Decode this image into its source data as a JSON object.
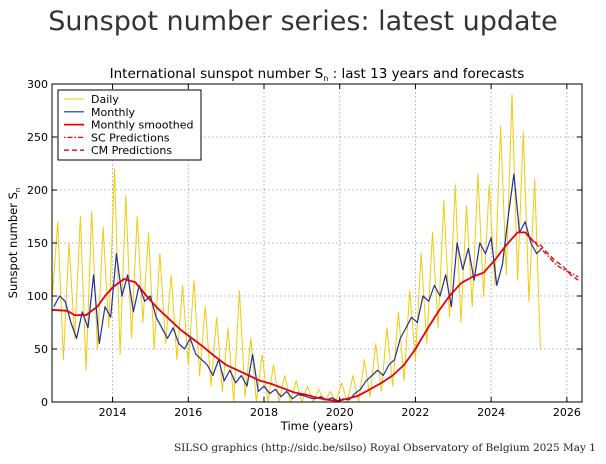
{
  "page": {
    "title": "Sunspot number series: latest update",
    "footer": "SILSO graphics (http://sidc.be/silso)  Royal Observatory of Belgium  2025 May 1"
  },
  "chart_data": {
    "type": "line",
    "title_text": "International sunspot number S",
    "title_sub": "n",
    "title_suffix": " : last 13 years and forecasts",
    "xlabel": "Time (years)",
    "ylabel_text": "Sunspot number S",
    "ylabel_sub": "n",
    "xlim": [
      2012.4,
      2026.4
    ],
    "ylim": [
      0,
      300
    ],
    "xticks": [
      2014,
      2016,
      2018,
      2020,
      2022,
      2024,
      2026
    ],
    "yticks": [
      0,
      50,
      100,
      150,
      200,
      250,
      300
    ],
    "grid": true,
    "legend_position": "top-left",
    "colors": {
      "daily": "#f2cc0c",
      "monthly": "#1f2ea0",
      "smoothed": "#e8000b",
      "sc": "#e8000b",
      "cm": "#e8000b"
    },
    "series": [
      {
        "name": "Daily",
        "style": "line",
        "x": [
          2012.4,
          2012.55,
          2012.7,
          2012.85,
          2013.0,
          2013.15,
          2013.3,
          2013.45,
          2013.6,
          2013.75,
          2013.9,
          2014.05,
          2014.2,
          2014.35,
          2014.5,
          2014.65,
          2014.8,
          2014.95,
          2015.1,
          2015.25,
          2015.4,
          2015.55,
          2015.7,
          2015.85,
          2016.0,
          2016.15,
          2016.3,
          2016.45,
          2016.6,
          2016.75,
          2016.9,
          2017.05,
          2017.2,
          2017.35,
          2017.5,
          2017.65,
          2017.8,
          2017.95,
          2018.1,
          2018.25,
          2018.4,
          2018.55,
          2018.7,
          2018.85,
          2019.0,
          2019.15,
          2019.3,
          2019.45,
          2019.6,
          2019.75,
          2019.9,
          2020.05,
          2020.2,
          2020.35,
          2020.5,
          2020.65,
          2020.8,
          2020.95,
          2021.1,
          2021.25,
          2021.4,
          2021.55,
          2021.7,
          2021.85,
          2022.0,
          2022.15,
          2022.3,
          2022.45,
          2022.6,
          2022.75,
          2022.9,
          2023.05,
          2023.2,
          2023.35,
          2023.5,
          2023.65,
          2023.8,
          2023.95,
          2024.1,
          2024.25,
          2024.4,
          2024.55,
          2024.7,
          2024.85,
          2025.0,
          2025.15,
          2025.3
        ],
        "y": [
          95,
          170,
          40,
          150,
          60,
          175,
          30,
          180,
          50,
          165,
          70,
          220,
          45,
          195,
          60,
          175,
          75,
          160,
          50,
          140,
          55,
          120,
          40,
          110,
          35,
          115,
          25,
          90,
          15,
          80,
          10,
          70,
          0,
          105,
          5,
          60,
          0,
          45,
          0,
          35,
          0,
          25,
          0,
          20,
          0,
          15,
          0,
          12,
          0,
          10,
          0,
          18,
          0,
          25,
          0,
          40,
          5,
          55,
          10,
          70,
          15,
          85,
          20,
          105,
          40,
          140,
          55,
          160,
          70,
          190,
          80,
          205,
          75,
          185,
          90,
          215,
          100,
          205,
          110,
          260,
          120,
          290,
          115,
          255,
          95,
          210,
          50
        ]
      },
      {
        "name": "Monthly",
        "style": "line",
        "x": [
          2012.45,
          2012.6,
          2012.75,
          2012.9,
          2013.05,
          2013.2,
          2013.35,
          2013.5,
          2013.65,
          2013.8,
          2013.95,
          2014.1,
          2014.25,
          2014.4,
          2014.55,
          2014.7,
          2014.85,
          2015.0,
          2015.15,
          2015.3,
          2015.45,
          2015.6,
          2015.75,
          2015.9,
          2016.05,
          2016.2,
          2016.35,
          2016.5,
          2016.65,
          2016.8,
          2016.95,
          2017.1,
          2017.25,
          2017.4,
          2017.55,
          2017.7,
          2017.85,
          2018.0,
          2018.15,
          2018.3,
          2018.45,
          2018.6,
          2018.75,
          2018.9,
          2019.05,
          2019.2,
          2019.35,
          2019.5,
          2019.65,
          2019.8,
          2019.95,
          2020.1,
          2020.25,
          2020.4,
          2020.55,
          2020.7,
          2020.85,
          2021.0,
          2021.15,
          2021.3,
          2021.45,
          2021.6,
          2021.75,
          2021.9,
          2022.05,
          2022.2,
          2022.35,
          2022.5,
          2022.65,
          2022.8,
          2022.95,
          2023.1,
          2023.25,
          2023.4,
          2023.55,
          2023.7,
          2023.85,
          2024.0,
          2024.15,
          2024.3,
          2024.45,
          2024.6,
          2024.75,
          2024.9,
          2025.05,
          2025.2,
          2025.35
        ],
        "y": [
          90,
          100,
          95,
          75,
          60,
          85,
          70,
          120,
          55,
          90,
          80,
          140,
          100,
          120,
          85,
          110,
          95,
          100,
          80,
          70,
          60,
          70,
          55,
          50,
          60,
          45,
          40,
          35,
          25,
          40,
          20,
          30,
          18,
          25,
          15,
          45,
          10,
          15,
          8,
          12,
          5,
          10,
          3,
          7,
          6,
          4,
          3,
          5,
          2,
          4,
          1,
          3,
          2,
          8,
          12,
          20,
          25,
          30,
          25,
          35,
          40,
          60,
          70,
          80,
          75,
          100,
          95,
          110,
          100,
          120,
          90,
          150,
          125,
          145,
          115,
          150,
          140,
          155,
          110,
          130,
          175,
          215,
          160,
          170,
          150,
          140,
          145
        ]
      },
      {
        "name": "Monthly smoothed",
        "style": "line",
        "x": [
          2012.4,
          2012.8,
          2013.0,
          2013.3,
          2013.6,
          2013.8,
          2014.0,
          2014.3,
          2014.6,
          2014.9,
          2015.2,
          2015.5,
          2015.8,
          2016.1,
          2016.4,
          2016.7,
          2017.0,
          2017.3,
          2017.6,
          2017.9,
          2018.2,
          2018.5,
          2018.8,
          2019.1,
          2019.4,
          2019.7,
          2019.95,
          2020.2,
          2020.5,
          2020.8,
          2021.1,
          2021.4,
          2021.7,
          2022.0,
          2022.3,
          2022.6,
          2022.9,
          2023.2,
          2023.5,
          2023.8,
          2024.1,
          2024.4,
          2024.7,
          2024.9,
          2025.1
        ],
        "y": [
          87,
          86,
          82,
          82,
          90,
          100,
          108,
          116,
          113,
          100,
          88,
          78,
          68,
          60,
          52,
          43,
          35,
          30,
          25,
          20,
          17,
          13,
          9,
          7,
          4,
          2,
          1,
          3,
          6,
          12,
          18,
          25,
          35,
          50,
          68,
          85,
          100,
          112,
          118,
          122,
          134,
          148,
          160,
          160,
          152
        ]
      },
      {
        "name": "SC Predictions",
        "style": "dash-dot",
        "x": [
          2025.1,
          2025.3,
          2025.5,
          2025.7,
          2025.9,
          2026.1,
          2026.3
        ],
        "y": [
          152,
          145,
          138,
          130,
          125,
          122,
          118
        ]
      },
      {
        "name": "CM Predictions",
        "style": "dashed",
        "x": [
          2025.1,
          2025.3,
          2025.5,
          2025.7,
          2025.9,
          2026.1,
          2026.3
        ],
        "y": [
          152,
          148,
          140,
          133,
          128,
          120,
          115
        ]
      }
    ]
  }
}
